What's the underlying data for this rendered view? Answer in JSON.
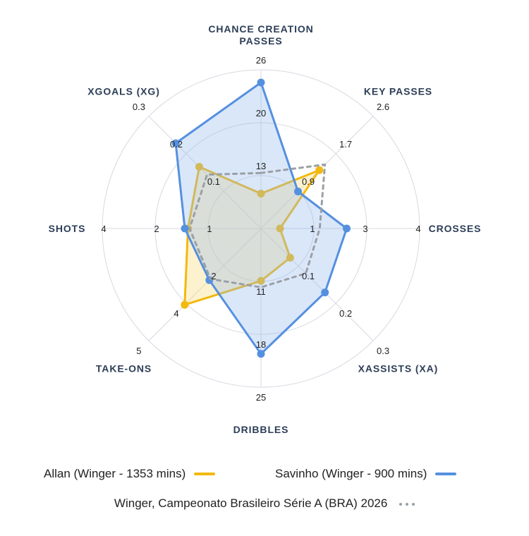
{
  "chart_data": {
    "type": "radar",
    "axes": [
      "CHANCE CREATION PASSES",
      "KEY PASSES",
      "CROSSES",
      "XASSISTS (XA)",
      "DRIBBLES",
      "TAKE-ONS",
      "SHOTS",
      "XGOALS (XG)"
    ],
    "axis_label_lines": [
      [
        "CHANCE CREATION",
        "PASSES"
      ],
      [
        "KEY PASSES"
      ],
      [
        "CROSSES"
      ],
      [
        "XASSISTS (XA)"
      ],
      [
        "DRIBBLES"
      ],
      [
        "TAKE-ONS"
      ],
      [
        "SHOTS"
      ],
      [
        "XGOALS (XG)"
      ]
    ],
    "ticks": [
      [
        "13",
        "20",
        "26"
      ],
      [
        "0.9",
        "1.7",
        "2.6"
      ],
      [
        "1",
        "3",
        "4"
      ],
      [
        "0.1",
        "0.2",
        "0.3"
      ],
      [
        "11",
        "18",
        "25"
      ],
      [
        "2",
        "4",
        "5"
      ],
      [
        "1",
        "2",
        "4"
      ],
      [
        "0.1",
        "0.2",
        "0.3"
      ]
    ],
    "series": [
      {
        "name": "Allan (Winger - 1353 mins)",
        "color": "#f2b90f",
        "fill": "rgba(250, 221, 125, 0.38)",
        "style": "solid",
        "values": [
          0.22,
          0.52,
          0.12,
          0.26,
          0.33,
          0.68,
          0.46,
          0.55
        ]
      },
      {
        "name": "Savinho (Winger - 900 mins)",
        "color": "#5590e0",
        "fill": "rgba(150, 185, 238, 0.35)",
        "style": "solid",
        "values": [
          0.92,
          0.33,
          0.54,
          0.57,
          0.79,
          0.46,
          0.48,
          0.76
        ]
      },
      {
        "name": "Winger, Campeonato Brasileiro Série A (BRA) 2026",
        "color": "#9aa0a6",
        "style": "dotted",
        "values": [
          0.35,
          0.57,
          0.37,
          0.4,
          0.37,
          0.45,
          0.45,
          0.48
        ]
      }
    ]
  },
  "legend": {
    "allan": "Allan (Winger - 1353 mins)",
    "savinho": "Savinho (Winger - 900 mins)",
    "average": "Winger, Campeonato Brasileiro Série A (BRA) 2026"
  }
}
